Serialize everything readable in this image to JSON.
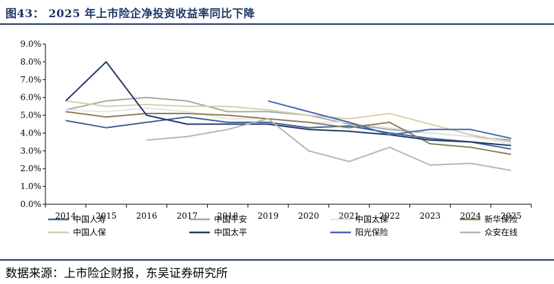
{
  "header": {
    "title": "图43：  2025 年上市险企净投资收益率同比下降"
  },
  "footer": {
    "source": "数据来源：上市险企财报，东吴证券研究所"
  },
  "colors": {
    "title": "#1f3864",
    "rule": "#1f3864",
    "axis": "#000000"
  },
  "chart_data": {
    "type": "line",
    "title": "",
    "xlabel": "",
    "ylabel": "",
    "x": [
      "2014",
      "2015",
      "2016",
      "2017",
      "2018",
      "2019",
      "2020",
      "2021",
      "2022",
      "2023",
      "2024",
      "2025"
    ],
    "yticks": [
      "0.0%",
      "1.0%",
      "2.0%",
      "3.0%",
      "4.0%",
      "5.0%",
      "6.0%",
      "7.0%",
      "8.0%",
      "9.0%"
    ],
    "ylim": [
      0,
      9
    ],
    "grid": false,
    "legend_position": "bottom",
    "series": [
      {
        "name": "中国人寿",
        "color": "#3d5f99",
        "values": [
          4.7,
          4.3,
          4.6,
          4.9,
          4.6,
          4.6,
          4.3,
          4.4,
          4.0,
          3.7,
          3.5,
          3.1
        ]
      },
      {
        "name": "中国平安",
        "color": "#a6a6a6",
        "values": [
          5.3,
          5.8,
          6.0,
          5.8,
          5.2,
          5.2,
          5.0,
          4.5,
          4.2,
          4.0,
          3.8,
          3.6
        ]
      },
      {
        "name": "中国太保",
        "color": "#e6e6e6",
        "values": [
          5.3,
          5.2,
          5.4,
          5.2,
          4.8,
          4.8,
          4.6,
          4.6,
          4.3,
          4.0,
          3.8,
          3.4
        ]
      },
      {
        "name": "新华保险",
        "color": "#8a7f55",
        "values": [
          5.2,
          4.9,
          5.1,
          5.1,
          5.0,
          4.8,
          4.6,
          4.3,
          4.6,
          3.4,
          3.2,
          2.8
        ]
      },
      {
        "name": "中国人保",
        "color": "#d9cfa8",
        "values": [
          5.8,
          5.5,
          5.6,
          5.5,
          5.5,
          5.3,
          5.0,
          4.8,
          5.1,
          4.5,
          3.9,
          3.5
        ]
      },
      {
        "name": "中国太平",
        "color": "#203864",
        "values": [
          5.8,
          8.0,
          5.0,
          4.5,
          4.5,
          4.5,
          4.2,
          4.1,
          3.9,
          3.6,
          3.5,
          3.3
        ]
      },
      {
        "name": "阳光保险",
        "color": "#3f68ad",
        "values": [
          null,
          null,
          null,
          null,
          null,
          5.8,
          5.2,
          4.6,
          3.9,
          4.2,
          4.2,
          3.7
        ]
      },
      {
        "name": "众安在线",
        "color": "#b5b5b5",
        "values": [
          null,
          null,
          3.6,
          3.8,
          4.2,
          4.8,
          3.0,
          2.4,
          3.2,
          2.2,
          2.3,
          1.9
        ]
      }
    ]
  }
}
